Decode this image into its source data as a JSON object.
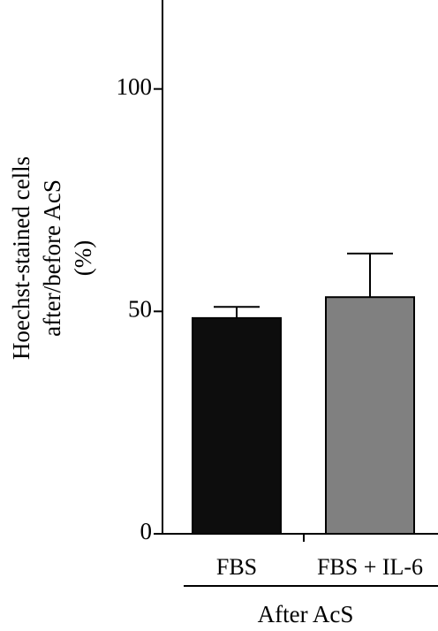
{
  "chart_data": {
    "type": "bar",
    "categories": [
      "FBS",
      "FBS + IL-6"
    ],
    "values": [
      48.5,
      53.2
    ],
    "errors_upper": [
      51.0,
      63.0
    ],
    "colors": [
      "#0d0d0d",
      "#808080"
    ],
    "ylabel_lines": [
      "Hoechst-stained cells",
      "after/before AcS",
      "(%)"
    ],
    "group_label": "After AcS",
    "yticks": [
      "0",
      "50",
      "100"
    ],
    "ylim": [
      0,
      120
    ],
    "grid": false
  }
}
